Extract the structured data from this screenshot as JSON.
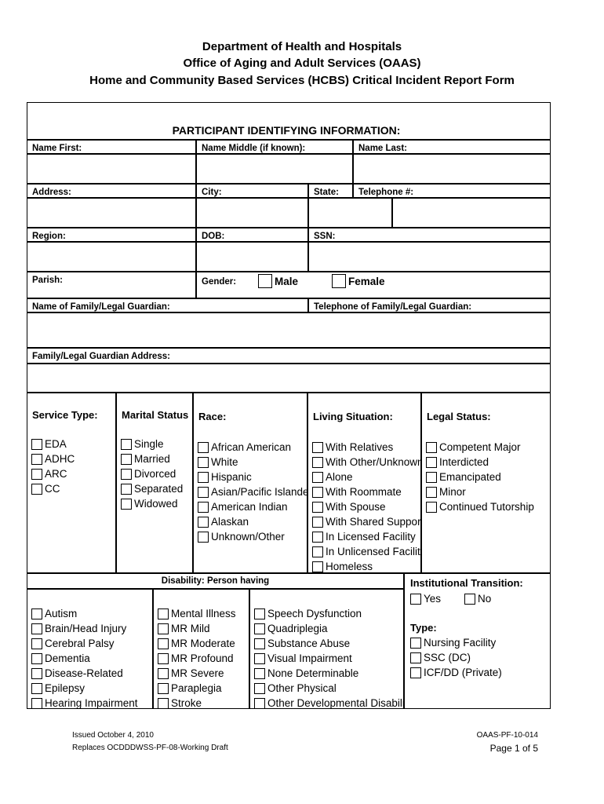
{
  "header": {
    "line1": "Department of Health and Hospitals",
    "line2": "Office of Aging and Adult Services (OAAS)",
    "line3": "Home and Community Based Services (HCBS) Critical Incident Report Form"
  },
  "section_title": "PARTICIPANT IDENTIFYING INFORMATION:",
  "fields": {
    "name_first": "Name First:",
    "name_middle": "Name Middle (if known):",
    "name_last": "Name Last:",
    "address": "Address:",
    "city": "City:",
    "state": "State:",
    "telephone": "Telephone #:",
    "region": "Region:",
    "dob": "DOB:",
    "ssn": "SSN:",
    "parish": "Parish:",
    "gender": "Gender:",
    "male": "Male",
    "female": "Female",
    "guardian_name": "Name of Family/Legal Guardian:",
    "guardian_phone": "Telephone of Family/Legal Guardian:",
    "guardian_address": "Family/Legal Guardian Address:"
  },
  "groups": [
    {
      "title": "Service Type:",
      "items": [
        "EDA",
        "ADHC",
        "ARC",
        "CC"
      ]
    },
    {
      "title": "Marital Status",
      "items": [
        "Single",
        "Married",
        "Divorced",
        "Separated",
        "Widowed"
      ]
    },
    {
      "title": "Race:",
      "items": [
        "African American",
        "White",
        "Hispanic",
        "Asian/Pacific Islander",
        "American Indian",
        "Alaskan",
        "Unknown/Other"
      ]
    },
    {
      "title": "Living Situation:",
      "items": [
        "With Relatives",
        "With Other/Unknown",
        "Alone",
        "With Roommate",
        "With Spouse",
        "With Shared Support",
        "In Licensed Facility",
        "In Unlicensed Facility",
        "Homeless"
      ]
    },
    {
      "title": "Legal Status:",
      "items": [
        "Competent Major",
        "Interdicted",
        "Emancipated",
        "Minor",
        "Continued Tutorship"
      ]
    }
  ],
  "disability": {
    "title": "Disability: Person having",
    "cols": [
      [
        "Autism",
        "Brain/Head Injury",
        "Cerebral Palsy",
        "Dementia",
        "Disease-Related",
        "Epilepsy",
        "Hearing Impairment"
      ],
      [
        "Mental Illness",
        "MR Mild",
        "MR Moderate",
        "MR Profound",
        "MR Severe",
        "Paraplegia",
        "Stroke"
      ],
      [
        "Speech Dysfunction",
        "Quadriplegia",
        "Substance Abuse",
        "Visual Impairment",
        "None Determinable",
        "Other Physical",
        "Other Developmental Disability"
      ]
    ]
  },
  "transition": {
    "title": "Institutional Transition:",
    "yes": "Yes",
    "no": "No",
    "type_title": "Type:",
    "types": [
      "Nursing Facility",
      "SSC (DC)",
      "ICF/DD (Private)"
    ]
  },
  "footer": {
    "issued": "Issued October 4, 2010",
    "replaces": "Replaces OCDDDWSS-PF-08-Working Draft",
    "form_no": "OAAS-PF-10-014",
    "page": "Page 1 of 5"
  }
}
